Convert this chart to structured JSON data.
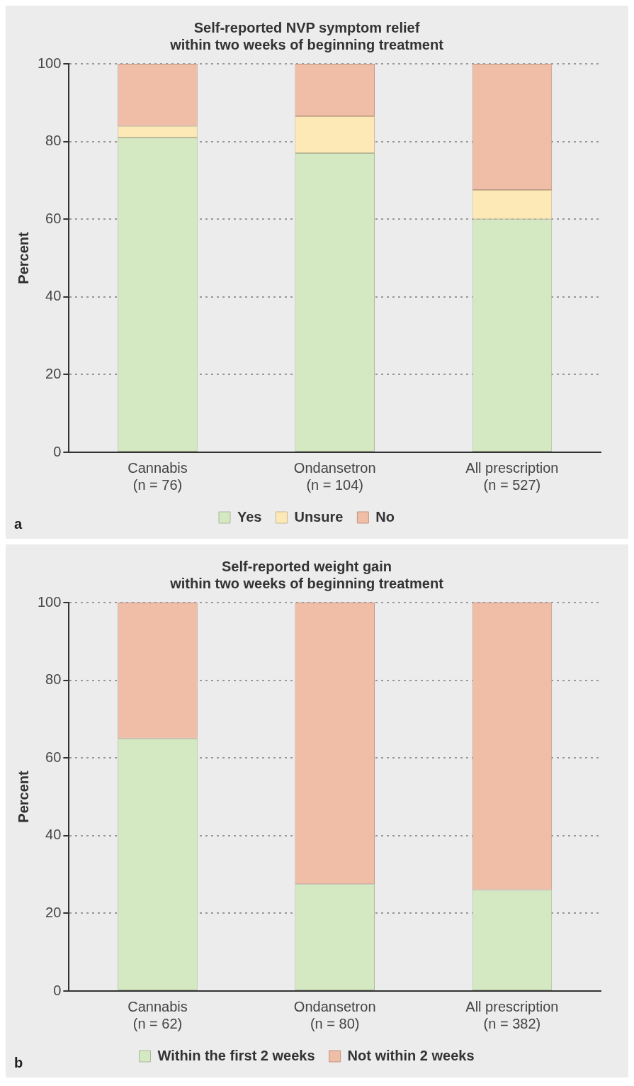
{
  "chart_data": [
    {
      "type": "bar",
      "title": "Self-reported NVP symptom relief\nwithin two weeks of beginning treatment",
      "ylabel": "Percent",
      "categories": [
        "Cannabis\n(n = 76)",
        "Ondansetron\n(n = 104)",
        "All prescription\n(n = 527)"
      ],
      "stacked": true,
      "series": [
        {
          "name": "Yes",
          "color": "#d4e8c2",
          "values": [
            81,
            77,
            60
          ]
        },
        {
          "name": "Unsure",
          "color": "#fde9b6",
          "values": [
            3,
            9.5,
            7.5
          ]
        },
        {
          "name": "No",
          "color": "#f0bda6",
          "values": [
            16,
            13.5,
            32.5
          ]
        }
      ],
      "ylim": [
        0,
        100
      ],
      "yticks": [
        0,
        20,
        40,
        60,
        80,
        100
      ],
      "grid": "y",
      "legend": "bottom",
      "annotations": [
        "a"
      ]
    },
    {
      "type": "bar",
      "title": "Self-reported weight gain\nwithin two weeks of beginning treatment",
      "ylabel": "Percent",
      "categories": [
        "Cannabis\n(n = 62)",
        "Ondansetron\n(n = 80)",
        "All prescription\n(n = 382)"
      ],
      "stacked": true,
      "series": [
        {
          "name": "Within the first 2 weeks",
          "color": "#d4e8c2",
          "values": [
            65,
            27.5,
            26
          ]
        },
        {
          "name": "Not within 2 weeks",
          "color": "#f0bda6",
          "values": [
            35,
            72.5,
            74
          ]
        }
      ],
      "ylim": [
        0,
        100
      ],
      "yticks": [
        0,
        20,
        40,
        60,
        80,
        100
      ],
      "grid": "y",
      "legend": "bottom",
      "annotations": [
        "b"
      ]
    }
  ]
}
